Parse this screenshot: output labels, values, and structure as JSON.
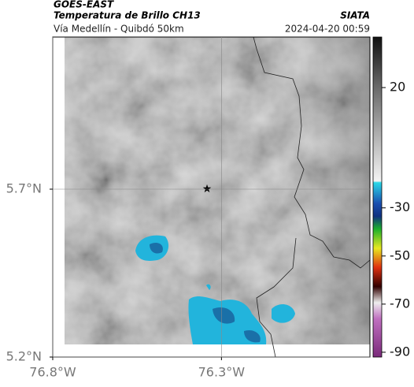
{
  "header": {
    "source": "GOES-EAST",
    "title": "Temperatura de Brillo CH13",
    "subtitle": "Vía Medellín - Quibdó 50km",
    "credit": "SIATA",
    "timestamp": "2024-04-20 00:59"
  },
  "map": {
    "xlim": [
      -76.8,
      -75.86
    ],
    "ylim": [
      5.2,
      6.153
    ],
    "xticks": [
      {
        "value": -76.8,
        "label": "76.8°W"
      },
      {
        "value": -76.3,
        "label": "76.3°W"
      }
    ],
    "yticks": [
      {
        "value": 5.2,
        "label": "5.2°N"
      },
      {
        "value": 5.7,
        "label": "5.7°N"
      }
    ],
    "grid": true
  },
  "colorbar": {
    "lim": [
      -92,
      41
    ],
    "ticks": [
      20,
      -30,
      -50,
      -70,
      -90
    ]
  }
}
